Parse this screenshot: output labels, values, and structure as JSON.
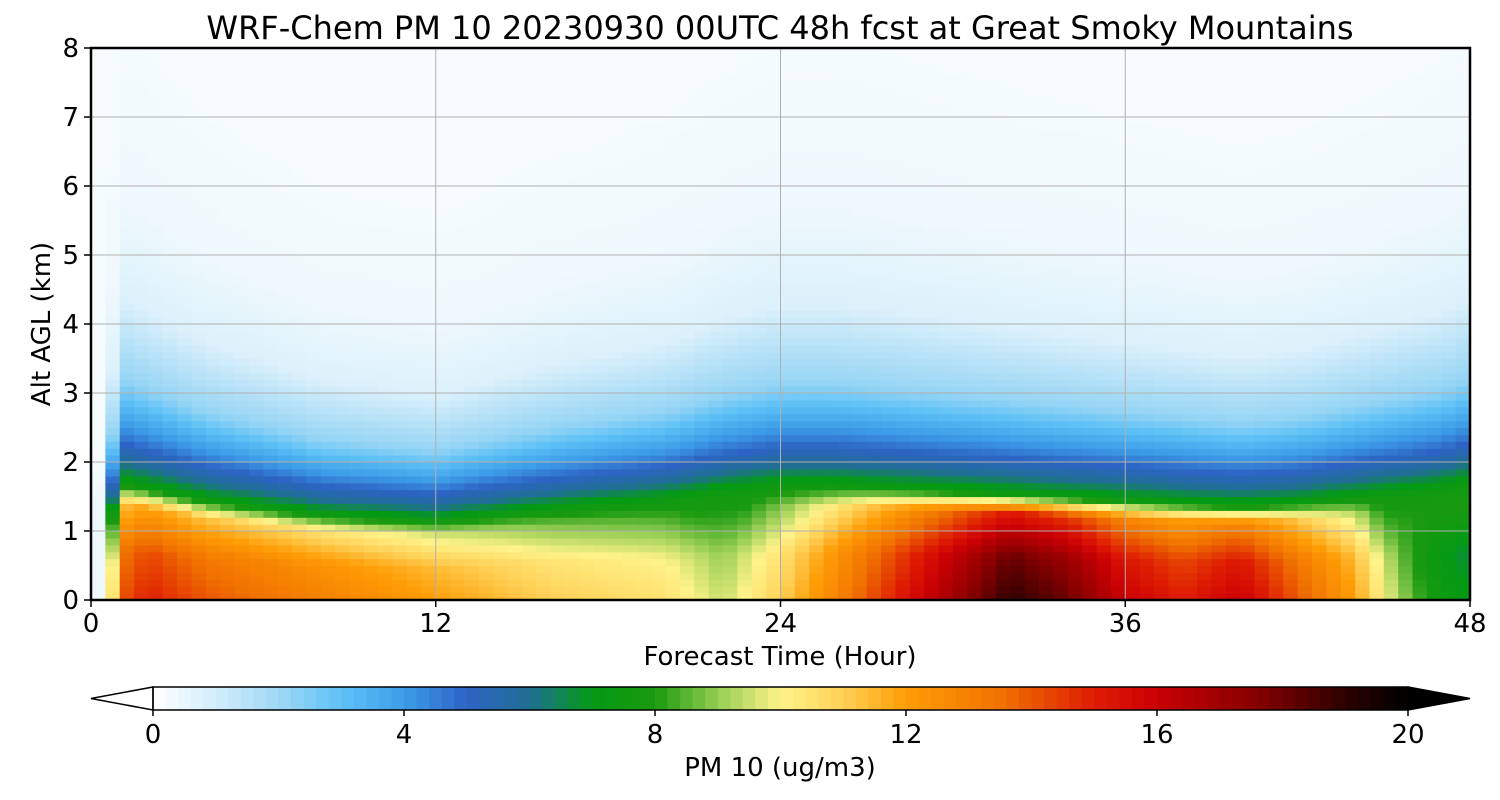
{
  "chart_data": {
    "type": "heatmap",
    "title": "WRF-Chem PM 10  20230930 00UTC 48h fcst at Great Smoky Mountains",
    "xlabel": "Forecast Time (Hour)",
    "ylabel": "Alt AGL (km)",
    "xlim": [
      0,
      48
    ],
    "ylim": [
      0,
      8
    ],
    "x_ticks": [
      "0",
      "12",
      "24",
      "36",
      "48"
    ],
    "y_ticks": [
      "0",
      "1",
      "2",
      "3",
      "4",
      "5",
      "6",
      "7",
      "8"
    ],
    "grid": true,
    "colorbar": {
      "label": "PM 10  (ug/m3)",
      "min": 0,
      "max": 20,
      "ticks": [
        "0",
        "4",
        "8",
        "12",
        "16",
        "20"
      ],
      "extend": "both",
      "orientation": "horizontal"
    },
    "surface_time": [
      0,
      1,
      2,
      4,
      8,
      12,
      16,
      20,
      22,
      24,
      26,
      28,
      30,
      32,
      34,
      36,
      38,
      40,
      42,
      44,
      45,
      46,
      47,
      48
    ],
    "surface_value": [
      0,
      14,
      15,
      14,
      13,
      12,
      11,
      10.5,
      9.5,
      11,
      13,
      15,
      17,
      19,
      18,
      16,
      15,
      16,
      14,
      12,
      10,
      8.5,
      7.5,
      7
    ],
    "mixing_top_km": [
      0,
      2,
      1.9,
      1.7,
      1.45,
      1.35,
      1.55,
      1.7,
      1.85,
      1.95,
      1.95,
      1.9,
      1.85,
      1.8,
      1.75,
      1.7,
      1.65,
      1.6,
      1.65,
      1.75,
      1.8,
      1.85,
      1.9,
      2
    ]
  }
}
